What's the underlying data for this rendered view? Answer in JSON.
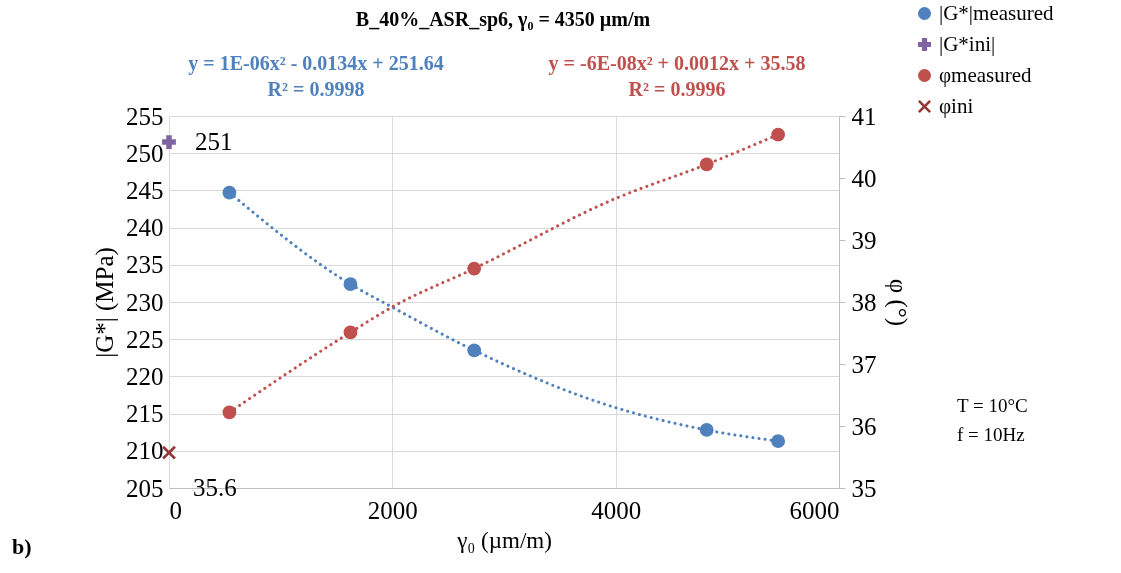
{
  "chart_data": {
    "type": "scatter",
    "title": "B_40%_ASR_sp6, γ₀ = 4350 µm/m",
    "xlabel": "γ₀ (µm/m)",
    "ylabel": "|G*| (MPa)",
    "y2label": "φ (°)",
    "xlim": [
      0,
      6000
    ],
    "xticks": [
      0,
      2000,
      4000,
      6000
    ],
    "ylim": [
      205,
      255
    ],
    "yticks": [
      205,
      210,
      215,
      220,
      225,
      230,
      235,
      240,
      245,
      250,
      255
    ],
    "y2lim": [
      35,
      41
    ],
    "y2ticks": [
      35,
      36,
      37,
      38,
      39,
      40,
      41
    ],
    "grid": true,
    "legend": "top right",
    "series": [
      {
        "name": "|G*|measured",
        "color": "#4f81bd",
        "marker": "circle",
        "x": [
          541,
          1625,
          2733,
          4815,
          5455
        ],
        "values": [
          244.7,
          232.4,
          223.5,
          212.8,
          211.3
        ]
      },
      {
        "name": "|G*ini|",
        "color": "#8064a2",
        "marker": "cross",
        "x": [
          0
        ],
        "values": [
          251.5
        ],
        "value_labels": [
          "251"
        ]
      },
      {
        "name": "φmeasured",
        "color": "#c0504d",
        "marker": "circle",
        "axis": "y2",
        "x": [
          541,
          1625,
          2733,
          4815,
          5455
        ],
        "values": [
          36.22,
          37.51,
          38.54,
          40.22,
          40.7
        ]
      },
      {
        "name": "φini",
        "color": "#953735",
        "marker": "x",
        "axis": "y2",
        "x": [
          0
        ],
        "values": [
          35.57
        ],
        "value_labels": [
          "35.6"
        ]
      },
      {
        "type": "line",
        "line_style": "dotted",
        "marker": "none",
        "color": "#4f81bd",
        "x": [
          541,
          1625,
          2000,
          2733,
          4000,
          4815,
          5455
        ],
        "values": [
          244.7,
          232.4,
          229.3,
          223.5,
          215.8,
          212.8,
          211.3
        ]
      },
      {
        "type": "line",
        "line_style": "dotted",
        "marker": "none",
        "color": "#c0504d",
        "axis": "y2",
        "x": [
          541,
          1625,
          2000,
          2733,
          4000,
          4815,
          5455
        ],
        "values": [
          36.22,
          37.51,
          37.92,
          38.54,
          39.67,
          40.22,
          40.7
        ]
      }
    ],
    "annotations": [
      "y = 1E-06x² - 0.0134x + 251.64",
      "R² = 0.9998",
      "y = -6E-08x² + 0.0012x + 35.58",
      "R² = 0.9996",
      "T = 10°C",
      "f = 10Hz",
      "b)"
    ]
  }
}
